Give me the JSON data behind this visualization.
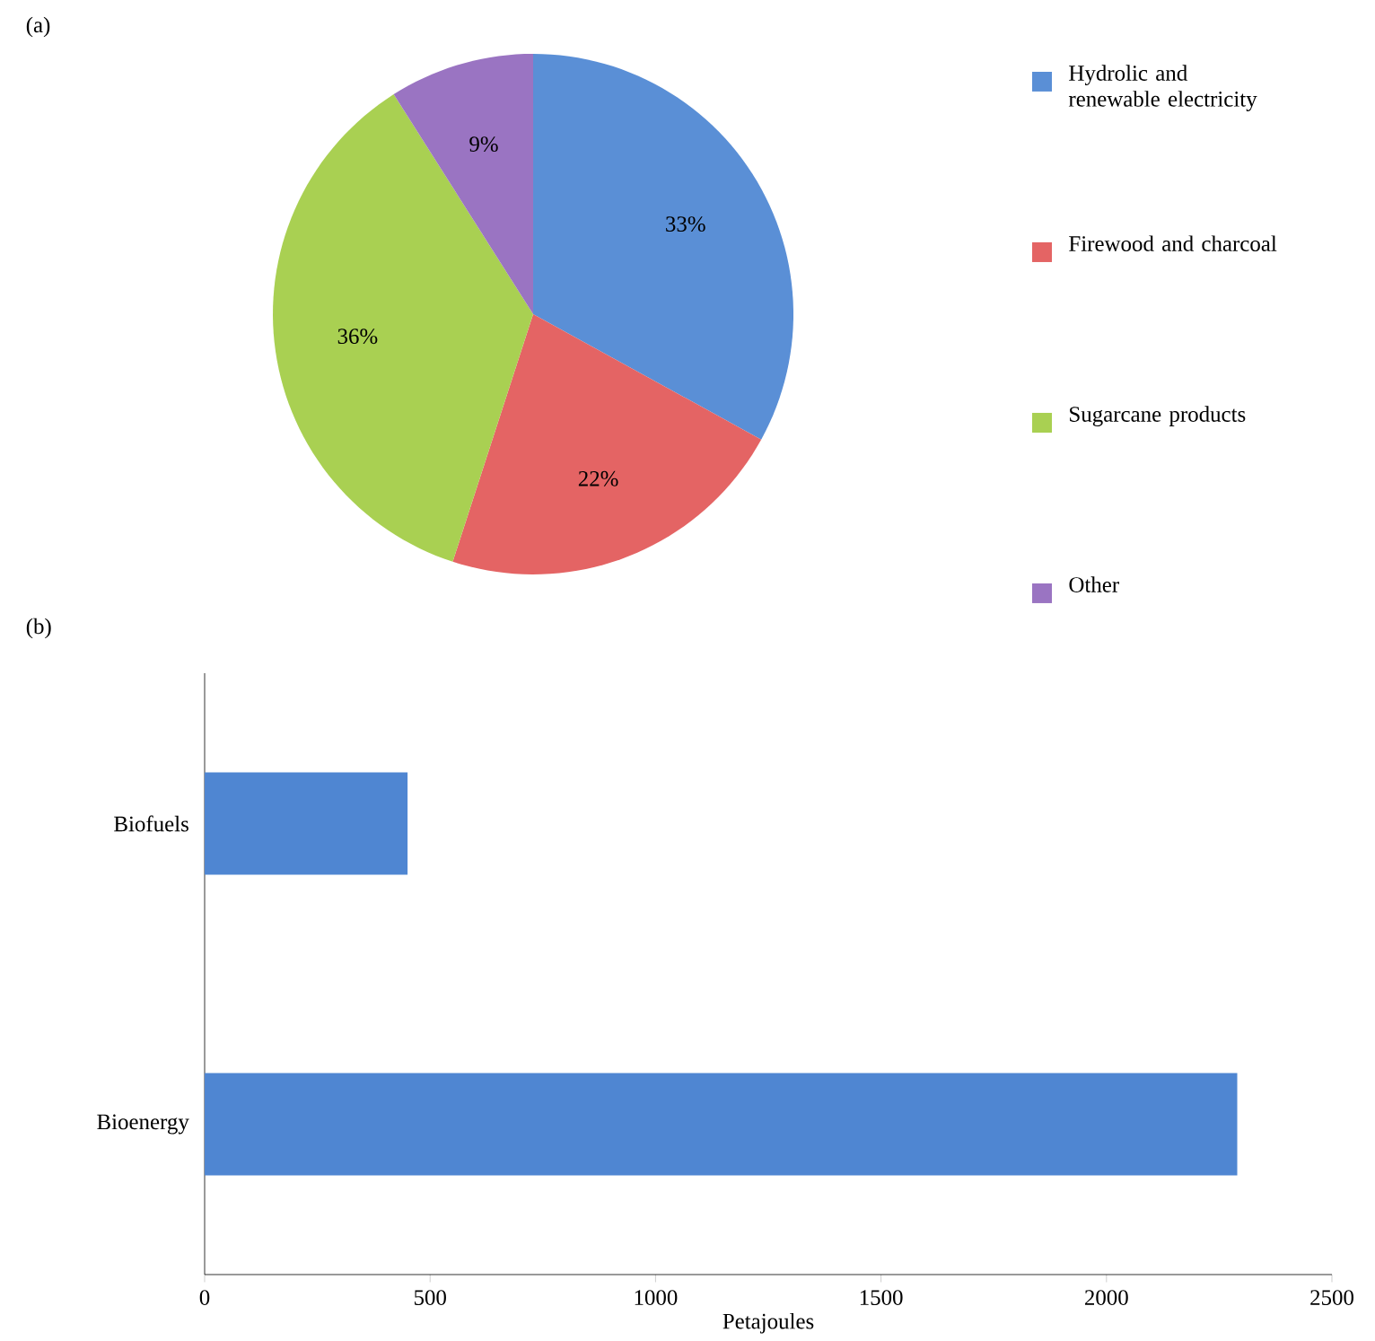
{
  "chart_data": [
    {
      "type": "pie",
      "title": "(a)",
      "categories": [
        "Hydrolic and renewable electricity",
        "Firewood and charcoal",
        "Sugarcane products",
        "Other"
      ],
      "values": [
        33,
        22,
        36,
        9
      ],
      "colors": [
        "#5a8fd6",
        "#e46464",
        "#a9d052",
        "#9a74c2"
      ],
      "value_labels": [
        "33%",
        "22%",
        "36%",
        "9%"
      ],
      "legend": "right"
    },
    {
      "type": "bar",
      "orientation": "horizontal",
      "title": "(b)",
      "categories": [
        "Biofuels",
        "Bioenergy"
      ],
      "values": [
        450,
        2290
      ],
      "color": "#4f86d2",
      "xlabel": "Petajoules",
      "xlim": [
        0,
        2500
      ],
      "xticks": [
        0,
        500,
        1000,
        1500,
        2000,
        2500
      ]
    }
  ]
}
